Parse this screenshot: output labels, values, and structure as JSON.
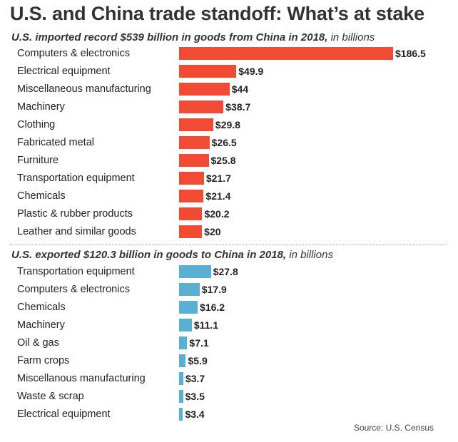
{
  "title": "U.S. and China trade standoff: What’s at stake",
  "source": "Source: U.S. Census",
  "chart_data": [
    {
      "type": "bar",
      "orientation": "horizontal",
      "title": "U.S. imported record $539 billion in goods from China in 2018,",
      "unit": "in billions",
      "color": "#f14b36",
      "value_prefix": "$",
      "categories": [
        "Computers & electronics",
        "Electrical equipment",
        "Miscellaneous manufacturing",
        "Machinery",
        "Clothing",
        "Fabricated metal",
        "Furniture",
        "Transportation equipment",
        "Chemicals",
        "Plastic & rubber products",
        "Leather and similar goods"
      ],
      "values": [
        186.5,
        49.9,
        44,
        38.7,
        29.8,
        26.5,
        25.8,
        21.7,
        21.4,
        20.2,
        20
      ]
    },
    {
      "type": "bar",
      "orientation": "horizontal",
      "title": "U.S. exported $120.3 billion in goods to China in 2018,",
      "unit": "in billions",
      "color": "#5ab0d3",
      "value_prefix": "$",
      "categories": [
        "Transportation equipment",
        "Computers & electronics",
        "Chemicals",
        "Machinery",
        "Oil & gas",
        "Farm crops",
        "Miscellanous manufacturing",
        "Waste & scrap",
        "Electrical equipment"
      ],
      "values": [
        27.8,
        17.9,
        16.2,
        11.1,
        7.1,
        5.9,
        3.7,
        3.5,
        3.4
      ]
    }
  ]
}
